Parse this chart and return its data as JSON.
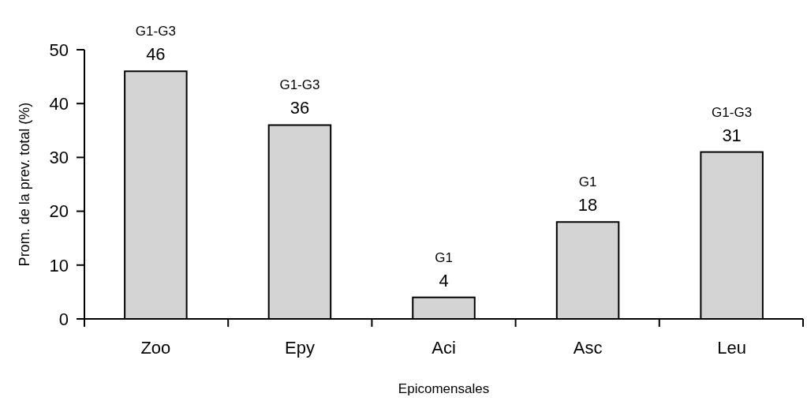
{
  "chart_data": {
    "type": "bar",
    "xlabel": "Epicomensales",
    "ylabel": "Prom. de la prev. total (%)",
    "categories": [
      "Zoo",
      "Epy",
      "Aci",
      "Asc",
      "Leu"
    ],
    "values": [
      46,
      36,
      4,
      18,
      31
    ],
    "color": "#d4d4d4",
    "ylim": [
      0,
      50
    ],
    "yticks": [
      0,
      10,
      20,
      30,
      40,
      50
    ],
    "grid": false,
    "data_labels": true,
    "annotations": [
      {
        "text": "G1-G3",
        "x": "Zoo",
        "y": 46
      },
      {
        "text": "G1-G3",
        "x": "Epy",
        "y": 36
      },
      {
        "text": "G1",
        "x": "Aci",
        "y": 4
      },
      {
        "text": "G1",
        "x": "Asc",
        "y": 18
      },
      {
        "text": "G1-G3",
        "x": "Leu",
        "y": 31
      }
    ]
  }
}
